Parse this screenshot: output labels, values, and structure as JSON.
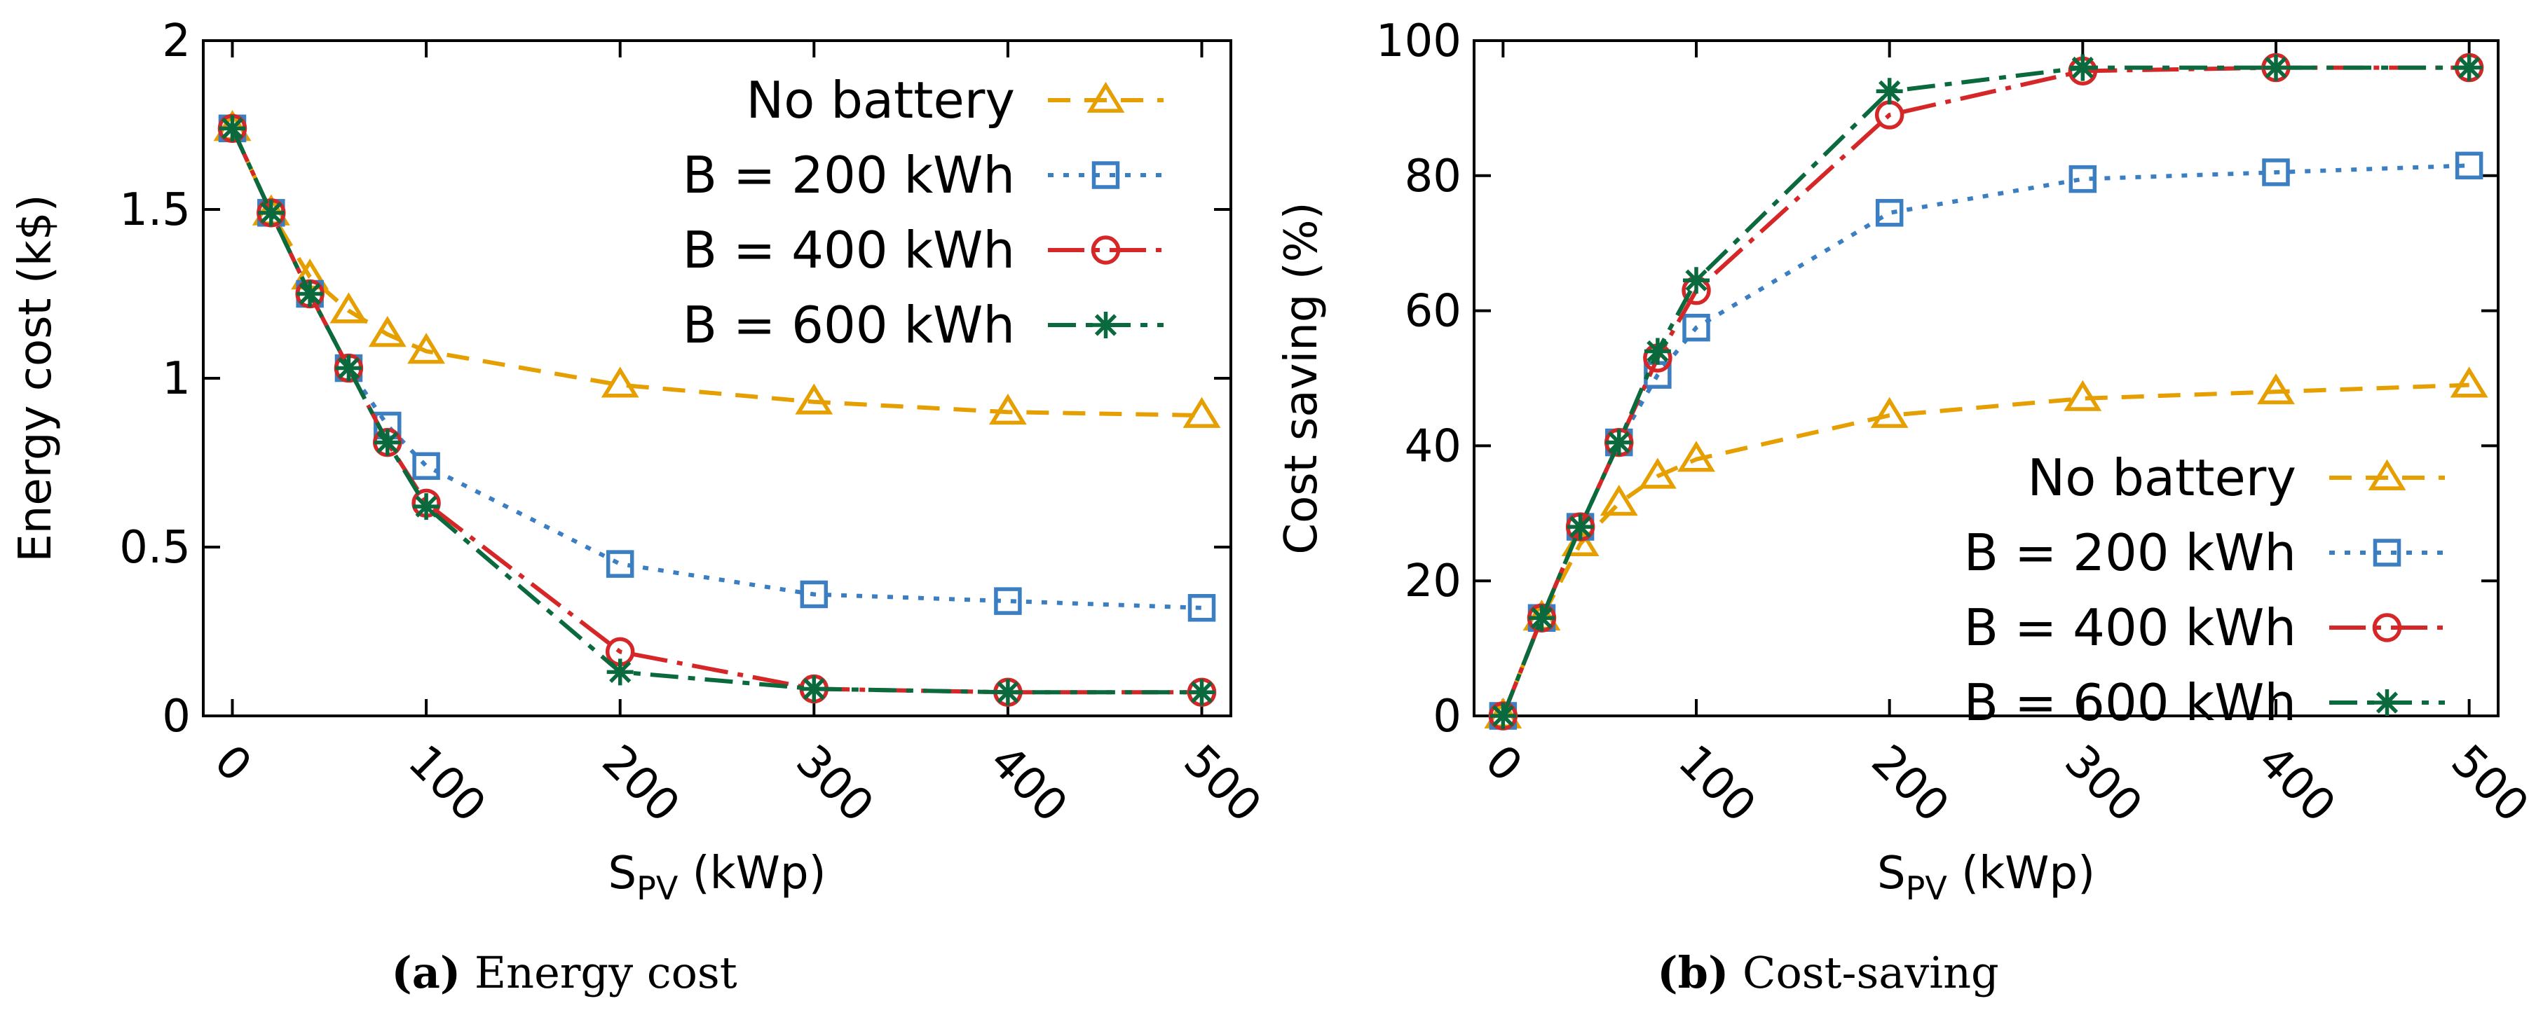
{
  "chart_data": [
    {
      "type": "line",
      "id": "a",
      "caption_label": "(a)",
      "caption_text": " Energy cost",
      "xlabel_main": "S",
      "xlabel_sub": "PV",
      "xlabel_unit": " (kWp)",
      "ylabel": "Energy cost (k$)",
      "xlim": [
        -15,
        515
      ],
      "ylim": [
        0,
        2
      ],
      "xticks": [
        0,
        100,
        200,
        300,
        400,
        500
      ],
      "xtick_labels": [
        "0",
        "100",
        "200",
        "300",
        "400",
        "500"
      ],
      "yticks": [
        0,
        0.5,
        1,
        1.5,
        2
      ],
      "ytick_labels": [
        "0",
        "0.5",
        "1",
        "1.5",
        "2"
      ],
      "legend_position": "top-right",
      "x": [
        0,
        20,
        40,
        60,
        80,
        100,
        200,
        300,
        400,
        500
      ],
      "series": [
        {
          "name": "No battery",
          "values": [
            1.74,
            1.49,
            1.3,
            1.2,
            1.13,
            1.08,
            0.98,
            0.93,
            0.9,
            0.89
          ],
          "color": "#e69f00",
          "marker": "triangle",
          "dash": "32 20"
        },
        {
          "name": "B = 200 kWh",
          "values": [
            1.74,
            1.49,
            1.25,
            1.03,
            0.86,
            0.74,
            0.45,
            0.36,
            0.34,
            0.32
          ],
          "color": "#3b7fc2",
          "marker": "square",
          "dash": "8 14"
        },
        {
          "name": "B = 400 kWh",
          "values": [
            1.74,
            1.49,
            1.25,
            1.03,
            0.81,
            0.63,
            0.19,
            0.08,
            0.07,
            0.07
          ],
          "color": "#d62728",
          "marker": "circle",
          "dash": "52 14 8 14"
        },
        {
          "name": "B = 600 kWh",
          "values": [
            1.74,
            1.49,
            1.25,
            1.03,
            0.81,
            0.62,
            0.13,
            0.08,
            0.07,
            0.07
          ],
          "color": "#0b6a3d",
          "marker": "star",
          "dash": "40 14 10 14"
        }
      ]
    },
    {
      "type": "line",
      "id": "b",
      "caption_label": "(b)",
      "caption_text": " Cost-saving",
      "xlabel_main": "S",
      "xlabel_sub": "PV",
      "xlabel_unit": " (kWp)",
      "ylabel": "Cost saving (%)",
      "xlim": [
        -15,
        515
      ],
      "ylim": [
        0,
        100
      ],
      "xticks": [
        0,
        100,
        200,
        300,
        400,
        500
      ],
      "xtick_labels": [
        "0",
        "100",
        "200",
        "300",
        "400",
        "500"
      ],
      "yticks": [
        0,
        20,
        40,
        60,
        80,
        100
      ],
      "ytick_labels": [
        "0",
        "20",
        "40",
        "60",
        "80",
        "100"
      ],
      "legend_position": "bottom-right",
      "x": [
        0,
        20,
        40,
        60,
        80,
        100,
        200,
        300,
        400,
        500
      ],
      "series": [
        {
          "name": "No battery",
          "values": [
            0,
            14.5,
            25.5,
            31.5,
            35.5,
            38,
            44.5,
            47,
            48,
            49
          ],
          "color": "#e69f00",
          "marker": "triangle",
          "dash": "32 20"
        },
        {
          "name": "B = 200 kWh",
          "values": [
            0,
            14.5,
            28,
            40.5,
            50.5,
            57.5,
            74.5,
            79.5,
            80.5,
            81.5
          ],
          "color": "#3b7fc2",
          "marker": "square",
          "dash": "8 14"
        },
        {
          "name": "B = 400 kWh",
          "values": [
            0,
            14.5,
            28,
            40.5,
            53,
            63,
            89,
            95.5,
            96,
            96
          ],
          "color": "#d62728",
          "marker": "circle",
          "dash": "52 14 8 14"
        },
        {
          "name": "B = 600 kWh",
          "values": [
            0,
            14.5,
            28,
            40.5,
            54,
            64.5,
            92.5,
            96,
            96,
            96
          ],
          "color": "#0b6a3d",
          "marker": "star",
          "dash": "40 14 10 14"
        }
      ]
    }
  ]
}
